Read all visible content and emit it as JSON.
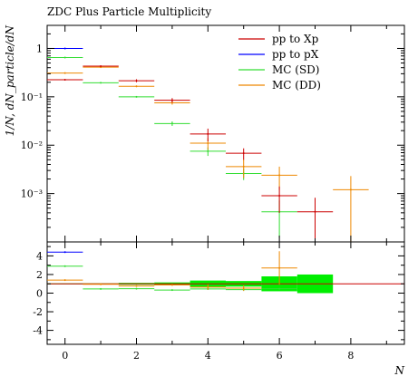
{
  "chart_data": {
    "type": "scatter",
    "title": "ZDC Plus Particle Multiplicity",
    "xlabel": "N",
    "ylabel": "1/N, dN_particle/dN",
    "xlim": [
      -0.5,
      9.5
    ],
    "main": {
      "ylim": [
        0.0001,
        3
      ],
      "yscale": "log",
      "yticks": [
        {
          "value": 1,
          "label": "1"
        },
        {
          "value": 0.1,
          "label": "10⁻¹"
        },
        {
          "value": 0.01,
          "label": "10⁻²"
        },
        {
          "value": 0.001,
          "label": "10⁻³"
        }
      ]
    },
    "ratio": {
      "ylim": [
        -5.5,
        5.5
      ],
      "yticks": [
        {
          "value": 4,
          "label": "4"
        },
        {
          "value": 2,
          "label": "2"
        },
        {
          "value": 0,
          "label": "0"
        },
        {
          "value": -2,
          "label": "-2"
        },
        {
          "value": -4,
          "label": "-4"
        }
      ]
    },
    "xticks": [
      {
        "value": 0,
        "label": "0"
      },
      {
        "value": 2,
        "label": "2"
      },
      {
        "value": 4,
        "label": "4"
      },
      {
        "value": 6,
        "label": "6"
      },
      {
        "value": 8,
        "label": "8"
      }
    ],
    "legend_position": "top-right",
    "series": [
      {
        "name": "pp to Xp",
        "color": "#cc0000",
        "points": [
          {
            "x": 0,
            "y": 0.225,
            "yerr": 0.004
          },
          {
            "x": 1,
            "y": 0.43,
            "yerr": 0.006
          },
          {
            "x": 2,
            "y": 0.215,
            "yerr": 0.015
          },
          {
            "x": 3,
            "y": 0.085,
            "yerr": 0.009
          },
          {
            "x": 4,
            "y": 0.017,
            "yerr": 0.005
          },
          {
            "x": 5,
            "y": 0.0068,
            "yerr": 0.0018
          },
          {
            "x": 6,
            "y": 0.0009,
            "yerr": 0.0005
          },
          {
            "x": 7,
            "y": 0.00042,
            "yerr": 0.0004
          }
        ]
      },
      {
        "name": "pp to pX",
        "color": "#0000ff",
        "points": [
          {
            "x": 0,
            "y": 1.0,
            "yerr": 0.0
          }
        ]
      },
      {
        "name": "MC (SD)",
        "color": "#33dd33",
        "points": [
          {
            "x": 0,
            "y": 0.65,
            "yerr": 0.005
          },
          {
            "x": 1,
            "y": 0.195,
            "yerr": 0.004
          },
          {
            "x": 2,
            "y": 0.1,
            "yerr": 0.003
          },
          {
            "x": 3,
            "y": 0.028,
            "yerr": 0.003
          },
          {
            "x": 4,
            "y": 0.0075,
            "yerr": 0.0015
          },
          {
            "x": 5,
            "y": 0.0026,
            "yerr": 0.0007
          },
          {
            "x": 6,
            "y": 0.00042,
            "yerr": 0.0003
          }
        ]
      },
      {
        "name": "MC (DD)",
        "color": "#ee8800",
        "points": [
          {
            "x": 0,
            "y": 0.31,
            "yerr": 0.004
          },
          {
            "x": 1,
            "y": 0.41,
            "yerr": 0.005
          },
          {
            "x": 2,
            "y": 0.165,
            "yerr": 0.006
          },
          {
            "x": 3,
            "y": 0.075,
            "yerr": 0.006
          },
          {
            "x": 4,
            "y": 0.011,
            "yerr": 0.003
          },
          {
            "x": 5,
            "y": 0.0036,
            "yerr": 0.0015
          },
          {
            "x": 6,
            "y": 0.0024,
            "yerr": 0.0012
          },
          {
            "x": 8,
            "y": 0.0012,
            "yerr": 0.0011
          }
        ]
      }
    ],
    "ratio_series": [
      {
        "name": "pp to pX",
        "color": "#0000ff",
        "points": [
          {
            "x": 0,
            "y": 4.4,
            "yerr": 0
          }
        ]
      },
      {
        "name": "MC (SD)",
        "color": "#33dd33",
        "points": [
          {
            "x": 0,
            "y": 2.9,
            "yerr": 0
          },
          {
            "x": 1,
            "y": 0.45,
            "yerr": 0
          },
          {
            "x": 2,
            "y": 0.47,
            "yerr": 0
          },
          {
            "x": 3,
            "y": 0.33,
            "yerr": 0
          },
          {
            "x": 4,
            "y": 0.45,
            "yerr": 0
          },
          {
            "x": 5,
            "y": 0.38,
            "yerr": 0
          },
          {
            "x": 6,
            "y": 0.47,
            "yerr": 0
          }
        ]
      },
      {
        "name": "MC (DD)",
        "color": "#ee8800",
        "points": [
          {
            "x": 0,
            "y": 1.4,
            "yerr": 0
          },
          {
            "x": 1,
            "y": 0.95,
            "yerr": 0
          },
          {
            "x": 2,
            "y": 0.77,
            "yerr": 0
          },
          {
            "x": 3,
            "y": 0.88,
            "yerr": 0
          },
          {
            "x": 4,
            "y": 0.65,
            "yerr": 0.3
          },
          {
            "x": 5,
            "y": 0.53,
            "yerr": 0.3
          },
          {
            "x": 6,
            "y": 2.7,
            "yerr": 1.8
          }
        ]
      }
    ],
    "ratio_band": {
      "color": "#00ee00",
      "center_color": "#cc0000",
      "center": 1,
      "bins": [
        {
          "x": 0,
          "half": 0.05
        },
        {
          "x": 1,
          "half": 0.05
        },
        {
          "x": 2,
          "half": 0.1
        },
        {
          "x": 3,
          "half": 0.15
        },
        {
          "x": 4,
          "half": 0.35
        },
        {
          "x": 5,
          "half": 0.3
        },
        {
          "x": 6,
          "half": 0.8
        },
        {
          "x": 7,
          "half": 1.0
        }
      ]
    }
  }
}
